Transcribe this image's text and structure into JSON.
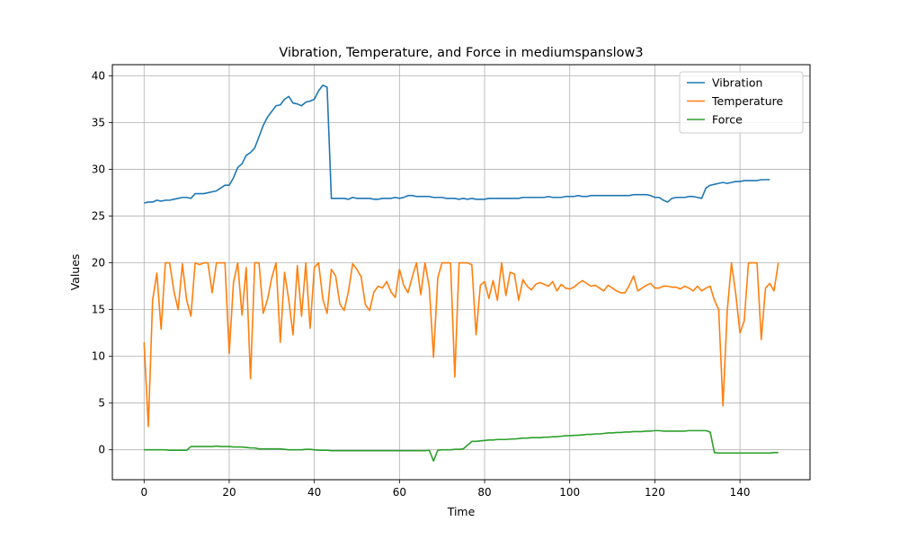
{
  "chart_data": {
    "type": "line",
    "title": "Vibration, Temperature, and Force in mediumspanslow3",
    "xlabel": "Time",
    "ylabel": "Values",
    "xlim": [
      -7.45,
      156.45
    ],
    "ylim": [
      -3.2,
      41.2
    ],
    "xticks": [
      0,
      20,
      40,
      60,
      80,
      100,
      120,
      140
    ],
    "yticks": [
      0,
      5,
      10,
      15,
      20,
      25,
      30,
      35,
      40
    ],
    "grid": true,
    "legend_position": "top-right",
    "series": [
      {
        "name": "Vibration",
        "color": "#1f77b4",
        "values": [
          26.4,
          26.5,
          26.5,
          26.7,
          26.6,
          26.7,
          26.7,
          26.8,
          26.9,
          27.0,
          27.0,
          26.9,
          27.4,
          27.4,
          27.4,
          27.5,
          27.6,
          27.7,
          28.0,
          28.3,
          28.3,
          29.1,
          30.2,
          30.6,
          31.5,
          31.8,
          32.3,
          33.5,
          34.7,
          35.6,
          36.2,
          36.8,
          36.9,
          37.5,
          37.8,
          37.1,
          37.0,
          36.8,
          37.2,
          37.3,
          37.5,
          38.4,
          39.0,
          38.8,
          26.9,
          26.9,
          26.9,
          26.9,
          26.8,
          27.0,
          26.9,
          26.9,
          26.9,
          26.9,
          26.8,
          26.8,
          26.9,
          26.9,
          26.9,
          27.0,
          26.9,
          27.0,
          27.2,
          27.2,
          27.1,
          27.1,
          27.1,
          27.1,
          27.0,
          27.0,
          27.0,
          26.9,
          26.9,
          26.9,
          26.8,
          26.9,
          26.8,
          26.9,
          26.8,
          26.8,
          26.8,
          26.9,
          26.9,
          26.9,
          26.9,
          26.9,
          26.9,
          26.9,
          26.9,
          27.0,
          27.0,
          27.0,
          27.0,
          27.0,
          27.0,
          27.1,
          27.0,
          27.0,
          27.0,
          27.1,
          27.1,
          27.1,
          27.2,
          27.1,
          27.1,
          27.2,
          27.2,
          27.2,
          27.2,
          27.2,
          27.2,
          27.2,
          27.2,
          27.2,
          27.2,
          27.3,
          27.3,
          27.3,
          27.3,
          27.2,
          27.0,
          27.0,
          26.7,
          26.5,
          26.9,
          27.0,
          27.0,
          27.0,
          27.1,
          27.1,
          27.0,
          26.9,
          28.0,
          28.3,
          28.4,
          28.5,
          28.6,
          28.5,
          28.6,
          28.7,
          28.7,
          28.8,
          28.8,
          28.8,
          28.8,
          28.9,
          28.9,
          28.9
        ]
      },
      {
        "name": "Temperature",
        "color": "#ff7f0e",
        "values": [
          11.5,
          2.5,
          16.0,
          18.9,
          12.9,
          20.0,
          20.0,
          17.0,
          15.0,
          19.9,
          16.0,
          14.3,
          20.0,
          19.8,
          20.0,
          20.0,
          16.8,
          20.0,
          20.0,
          20.0,
          10.3,
          17.9,
          20.0,
          14.4,
          19.5,
          7.6,
          20.0,
          20.0,
          14.6,
          16.1,
          18.4,
          20.0,
          11.5,
          19.0,
          16.0,
          12.3,
          19.7,
          14.3,
          20.0,
          13.0,
          19.5,
          20.0,
          16.1,
          14.6,
          19.3,
          18.6,
          15.6,
          14.9,
          16.9,
          19.9,
          19.3,
          18.5,
          15.5,
          14.9,
          16.9,
          17.5,
          17.3,
          18.0,
          16.9,
          16.3,
          19.3,
          17.6,
          16.8,
          18.5,
          20.0,
          16.6,
          20.0,
          17.4,
          9.9,
          18.4,
          20.0,
          20.0,
          20.0,
          7.8,
          20.0,
          20.0,
          20.0,
          19.8,
          12.3,
          17.6,
          18.0,
          16.2,
          18.1,
          16.0,
          20.0,
          16.5,
          19.0,
          18.8,
          16.0,
          18.2,
          17.5,
          17.1,
          17.7,
          17.9,
          17.7,
          17.5,
          18.0,
          17.0,
          17.7,
          17.3,
          17.2,
          17.4,
          17.8,
          18.1,
          17.8,
          17.5,
          17.6,
          17.3,
          17.0,
          17.6,
          17.3,
          17.0,
          16.8,
          16.8,
          17.6,
          18.6,
          17.0,
          17.3,
          17.6,
          17.8,
          17.3,
          17.3,
          17.5,
          17.5,
          17.4,
          17.4,
          17.2,
          17.5,
          17.3,
          17.0,
          17.5,
          17.0,
          17.3,
          17.5,
          16.0,
          15.0,
          4.7,
          14.8,
          20.0,
          16.7,
          12.5,
          13.8,
          20.0,
          20.0,
          20.0,
          11.8,
          17.3,
          17.8,
          17.0,
          20.0
        ]
      },
      {
        "name": "Force",
        "color": "#2ca02c",
        "values": [
          0.0,
          0.0,
          0.0,
          0.0,
          0.0,
          0.0,
          -0.05,
          -0.05,
          -0.05,
          -0.05,
          -0.05,
          0.35,
          0.35,
          0.35,
          0.35,
          0.35,
          0.35,
          0.4,
          0.35,
          0.35,
          0.35,
          0.3,
          0.3,
          0.3,
          0.25,
          0.2,
          0.2,
          0.1,
          0.1,
          0.1,
          0.1,
          0.1,
          0.1,
          0.05,
          0.0,
          0.0,
          0.0,
          0.0,
          0.05,
          0.05,
          0.0,
          -0.05,
          -0.05,
          -0.05,
          -0.1,
          -0.1,
          -0.1,
          -0.1,
          -0.1,
          -0.1,
          -0.1,
          -0.1,
          -0.1,
          -0.1,
          -0.1,
          -0.1,
          -0.1,
          -0.1,
          -0.1,
          -0.1,
          -0.1,
          -0.1,
          -0.1,
          -0.1,
          -0.1,
          -0.1,
          -0.1,
          -0.05,
          -1.2,
          -0.05,
          0.0,
          0.0,
          0.0,
          0.05,
          0.05,
          0.1,
          0.5,
          0.9,
          0.9,
          0.95,
          1.0,
          1.05,
          1.05,
          1.1,
          1.1,
          1.1,
          1.15,
          1.15,
          1.2,
          1.25,
          1.25,
          1.3,
          1.3,
          1.3,
          1.35,
          1.35,
          1.4,
          1.4,
          1.45,
          1.5,
          1.5,
          1.55,
          1.55,
          1.6,
          1.65,
          1.65,
          1.7,
          1.7,
          1.75,
          1.8,
          1.8,
          1.85,
          1.85,
          1.9,
          1.9,
          1.95,
          1.95,
          1.95,
          2.0,
          2.0,
          2.05,
          2.05,
          2.0,
          2.0,
          2.0,
          2.0,
          2.0,
          2.0,
          2.05,
          2.05,
          2.05,
          2.05,
          2.05,
          1.9,
          -0.3,
          -0.35,
          -0.35,
          -0.35,
          -0.35,
          -0.35,
          -0.35,
          -0.35,
          -0.35,
          -0.35,
          -0.35,
          -0.35,
          -0.35,
          -0.35,
          -0.3,
          -0.3
        ]
      }
    ]
  }
}
